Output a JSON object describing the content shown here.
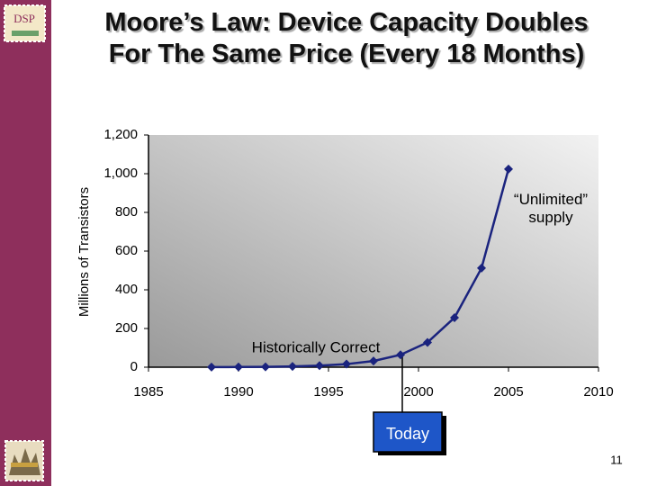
{
  "logo_text": "DSP",
  "page_number": "11",
  "chart_data": {
    "type": "line",
    "title": "Moore’s Law:  Device Capacity Doubles For The Same Price (Every 18 Months)",
    "y_label": "Millions of Transistors",
    "x": [
      1988.5,
      1990,
      1991.5,
      1993,
      1994.5,
      1996,
      1997.5,
      1999,
      2000.5,
      2002,
      2003.5,
      2005
    ],
    "series": [
      {
        "name": null,
        "color": "#1a237e",
        "values": [
          0.5,
          1,
          2,
          4,
          8,
          16,
          32,
          64,
          128,
          256,
          512,
          1024
        ]
      }
    ],
    "xlim": [
      1985,
      2010
    ],
    "xticks": [
      1985,
      1990,
      1995,
      2000,
      2005,
      2010
    ],
    "ylim": [
      0,
      1200
    ],
    "yticks": [
      0,
      200,
      400,
      600,
      800,
      {
        "value": 1000,
        "label": "1,000"
      },
      {
        "value": 1200,
        "label": "1,200"
      }
    ],
    "annotations": [
      "Historically Correct",
      "“Unlimited” supply",
      "Today"
    ]
  }
}
